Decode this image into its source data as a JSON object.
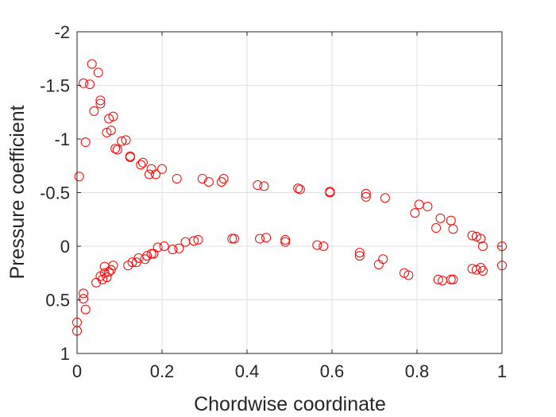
{
  "chart_data": {
    "type": "scatter",
    "title": "",
    "xlabel": "Chordwise coordinate",
    "ylabel": "Pressure coefficient",
    "xlim": [
      0,
      1
    ],
    "ylim": [
      -2,
      1
    ],
    "y_reversed": true,
    "xticks": [
      0,
      0.2,
      0.4,
      0.6,
      0.8,
      1
    ],
    "xtick_labels": [
      "0",
      "0.2",
      "0.4",
      "0.6",
      "0.8",
      "1"
    ],
    "yticks": [
      -2,
      -1.5,
      -1,
      -0.5,
      0,
      0.5,
      1
    ],
    "ytick_labels": [
      "-2",
      "-1.5",
      "-1",
      "-0.5",
      "0",
      "0.5",
      "1"
    ],
    "grid": true,
    "marker": "open-circle",
    "marker_color": "#ff0000",
    "grid_color": "#e0e0e0",
    "axis_color": "#262626",
    "series": [
      {
        "points": [
          [
            0.0,
            0.71
          ],
          [
            0.0,
            0.79
          ],
          [
            0.005,
            -0.65
          ],
          [
            0.015,
            0.49
          ],
          [
            0.02,
            0.59
          ],
          [
            0.015,
            0.44
          ],
          [
            0.02,
            -0.97
          ],
          [
            0.015,
            -1.52
          ],
          [
            0.03,
            -1.51
          ],
          [
            0.035,
            -1.7
          ],
          [
            0.04,
            -1.26
          ],
          [
            0.045,
            0.34
          ],
          [
            0.05,
            -1.62
          ],
          [
            0.055,
            -1.36
          ],
          [
            0.055,
            -1.33
          ],
          [
            0.055,
            0.28
          ],
          [
            0.06,
            0.31
          ],
          [
            0.065,
            0.25
          ],
          [
            0.065,
            0.19
          ],
          [
            0.07,
            -1.06
          ],
          [
            0.07,
            0.29
          ],
          [
            0.075,
            0.24
          ],
          [
            0.075,
            -1.19
          ],
          [
            0.08,
            -1.08
          ],
          [
            0.08,
            0.22
          ],
          [
            0.085,
            -1.21
          ],
          [
            0.085,
            0.18
          ],
          [
            0.09,
            -0.91
          ],
          [
            0.095,
            -0.9
          ],
          [
            0.105,
            -0.98
          ],
          [
            0.115,
            -0.99
          ],
          [
            0.12,
            0.18
          ],
          [
            0.125,
            -0.84
          ],
          [
            0.125,
            -0.83
          ],
          [
            0.13,
            0.15
          ],
          [
            0.14,
            0.15
          ],
          [
            0.145,
            0.11
          ],
          [
            0.15,
            -0.76
          ],
          [
            0.155,
            -0.78
          ],
          [
            0.16,
            0.12
          ],
          [
            0.165,
            0.09
          ],
          [
            0.17,
            -0.67
          ],
          [
            0.175,
            -0.72
          ],
          [
            0.175,
            0.07
          ],
          [
            0.18,
            0.07
          ],
          [
            0.185,
            -0.67
          ],
          [
            0.19,
            0.01
          ],
          [
            0.2,
            -0.72
          ],
          [
            0.205,
            0.0
          ],
          [
            0.225,
            0.03
          ],
          [
            0.235,
            -0.63
          ],
          [
            0.24,
            0.02
          ],
          [
            0.255,
            -0.04
          ],
          [
            0.275,
            -0.05
          ],
          [
            0.285,
            -0.06
          ],
          [
            0.295,
            -0.63
          ],
          [
            0.31,
            -0.6
          ],
          [
            0.34,
            -0.6
          ],
          [
            0.345,
            -0.63
          ],
          [
            0.365,
            -0.07
          ],
          [
            0.37,
            -0.07
          ],
          [
            0.425,
            -0.57
          ],
          [
            0.43,
            -0.07
          ],
          [
            0.44,
            -0.56
          ],
          [
            0.445,
            -0.08
          ],
          [
            0.49,
            -0.06
          ],
          [
            0.49,
            -0.04
          ],
          [
            0.52,
            -0.54
          ],
          [
            0.525,
            -0.53
          ],
          [
            0.565,
            -0.01
          ],
          [
            0.58,
            0.0
          ],
          [
            0.595,
            -0.51
          ],
          [
            0.595,
            -0.5
          ],
          [
            0.665,
            0.06
          ],
          [
            0.665,
            0.09
          ],
          [
            0.68,
            -0.49
          ],
          [
            0.68,
            -0.46
          ],
          [
            0.71,
            0.17
          ],
          [
            0.72,
            0.12
          ],
          [
            0.725,
            -0.45
          ],
          [
            0.77,
            0.25
          ],
          [
            0.78,
            0.27
          ],
          [
            0.795,
            -0.31
          ],
          [
            0.805,
            -0.39
          ],
          [
            0.825,
            -0.37
          ],
          [
            0.845,
            -0.17
          ],
          [
            0.85,
            0.31
          ],
          [
            0.855,
            -0.26
          ],
          [
            0.86,
            0.32
          ],
          [
            0.88,
            0.31
          ],
          [
            0.88,
            -0.24
          ],
          [
            0.885,
            0.31
          ],
          [
            0.885,
            -0.16
          ],
          [
            0.93,
            -0.1
          ],
          [
            0.93,
            0.21
          ],
          [
            0.94,
            -0.09
          ],
          [
            0.94,
            0.22
          ],
          [
            0.95,
            -0.07
          ],
          [
            0.95,
            0.2
          ],
          [
            0.955,
            0.0
          ],
          [
            0.955,
            0.23
          ],
          [
            1.0,
            0.0
          ],
          [
            1.0,
            0.18
          ]
        ]
      }
    ]
  }
}
